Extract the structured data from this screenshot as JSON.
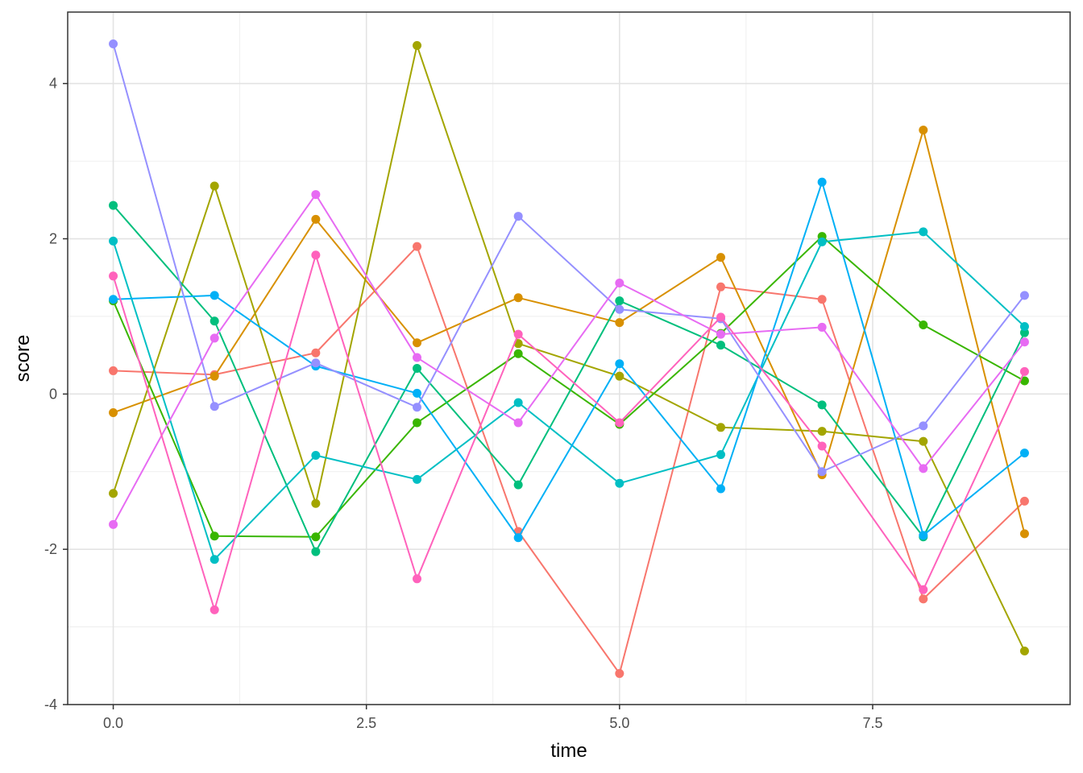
{
  "chart_data": {
    "type": "line",
    "title": "",
    "xlabel": "time",
    "ylabel": "score",
    "xlim": [
      -0.45,
      9.45
    ],
    "ylim": [
      -4.0,
      4.92
    ],
    "x_ticks": [
      0,
      2.5,
      5,
      7.5
    ],
    "x_tick_labels": [
      "0.0",
      "2.5",
      "5.0",
      "7.5"
    ],
    "y_ticks": [
      -4,
      -2,
      0,
      2,
      4
    ],
    "y_tick_labels": [
      "-4",
      "-2",
      "0",
      "2",
      "4"
    ],
    "grid": true,
    "legend": "none",
    "x": [
      0,
      1,
      2,
      3,
      4,
      5,
      6,
      7,
      8,
      9
    ],
    "series": [
      {
        "color": "#F8766D",
        "values": [
          0.3,
          0.25,
          0.53,
          1.9,
          -1.77,
          -3.6,
          1.38,
          1.22,
          -2.64,
          -1.38
        ]
      },
      {
        "color": "#D89000",
        "values": [
          -0.24,
          0.23,
          2.25,
          0.66,
          1.24,
          0.92,
          1.76,
          -1.04,
          3.4,
          -1.8
        ]
      },
      {
        "color": "#A3A500",
        "values": [
          -1.28,
          2.68,
          -1.41,
          4.49,
          0.65,
          0.23,
          -0.43,
          -0.48,
          -0.61,
          -3.31
        ]
      },
      {
        "color": "#39B600",
        "values": [
          1.2,
          -1.83,
          -1.84,
          -0.37,
          0.52,
          -0.39,
          0.78,
          2.03,
          0.89,
          0.17
        ]
      },
      {
        "color": "#00BF7D",
        "values": [
          2.43,
          0.94,
          -2.03,
          0.33,
          -1.17,
          1.2,
          0.63,
          -0.14,
          -1.84,
          0.79
        ]
      },
      {
        "color": "#00BFC4",
        "values": [
          1.97,
          -2.13,
          -0.79,
          -1.1,
          -0.11,
          -1.15,
          -0.78,
          1.96,
          2.09,
          0.87
        ]
      },
      {
        "color": "#00B0F6",
        "values": [
          1.22,
          1.27,
          0.36,
          0.01,
          -1.85,
          0.39,
          -1.22,
          2.73,
          -1.82,
          -0.76
        ]
      },
      {
        "color": "#9590FF",
        "values": [
          4.51,
          -0.16,
          0.4,
          -0.17,
          2.29,
          1.09,
          0.97,
          -1.0,
          -0.41,
          1.27
        ]
      },
      {
        "color": "#E76BF3",
        "values": [
          -1.68,
          0.72,
          2.57,
          0.47,
          -0.37,
          1.43,
          0.77,
          0.86,
          -0.96,
          0.67
        ]
      },
      {
        "color": "#FF62BC",
        "values": [
          1.52,
          -2.78,
          1.79,
          -2.38,
          0.77,
          -0.37,
          0.99,
          -0.67,
          -2.52,
          0.29
        ]
      }
    ]
  }
}
